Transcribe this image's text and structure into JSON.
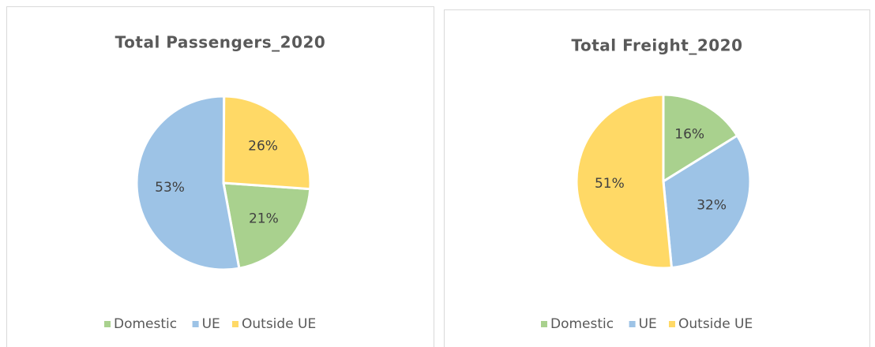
{
  "chart_data": [
    {
      "type": "pie",
      "title": "Total Passengers_2020",
      "categories": [
        "Domestic",
        "UE",
        "Outside UE"
      ],
      "values": [
        21,
        53,
        26
      ],
      "value_labels": [
        "21%",
        "53%",
        "26%"
      ],
      "colors": [
        "#a9d18e",
        "#9dc3e6",
        "#ffd966"
      ],
      "start_angle": 94,
      "legend": "bottom"
    },
    {
      "type": "pie",
      "title": "Total Freight_2020",
      "categories": [
        "Domestic",
        "UE",
        "Outside UE"
      ],
      "values": [
        16,
        32,
        51
      ],
      "value_labels": [
        "16%",
        "32%",
        "51%"
      ],
      "colors": [
        "#a9d18e",
        "#9dc3e6",
        "#ffd966"
      ],
      "start_angle": 0,
      "legend": "bottom"
    }
  ]
}
